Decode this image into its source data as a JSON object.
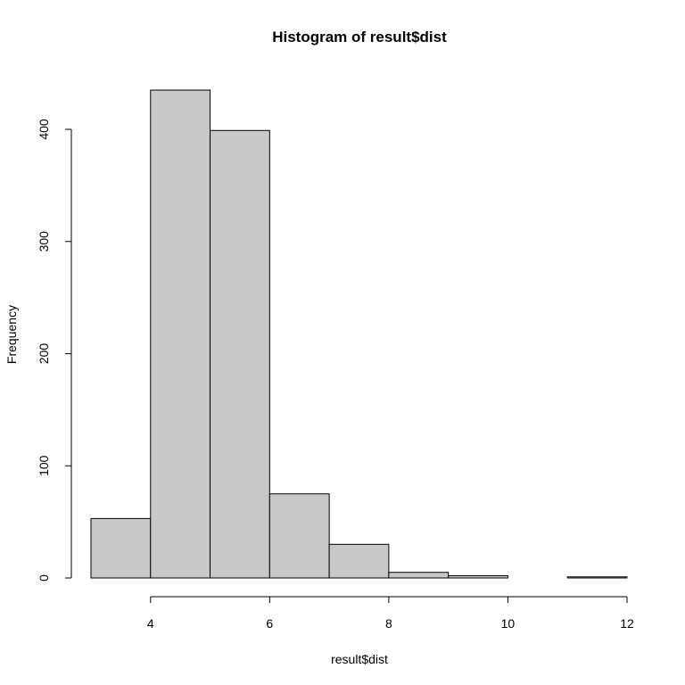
{
  "chart_data": {
    "type": "bar",
    "title": "Histogram of result$dist",
    "xlabel": "result$dist",
    "ylabel": "Frequency",
    "bins": [
      {
        "x0": 3,
        "x1": 4,
        "count": 53
      },
      {
        "x0": 4,
        "x1": 5,
        "count": 435
      },
      {
        "x0": 5,
        "x1": 6,
        "count": 399
      },
      {
        "x0": 6,
        "x1": 7,
        "count": 75
      },
      {
        "x0": 7,
        "x1": 8,
        "count": 30
      },
      {
        "x0": 8,
        "x1": 9,
        "count": 5
      },
      {
        "x0": 9,
        "x1": 10,
        "count": 2
      },
      {
        "x0": 10,
        "x1": 11,
        "count": 0
      },
      {
        "x0": 11,
        "x1": 12,
        "count": 1
      }
    ],
    "xlim": [
      3,
      12
    ],
    "ylim": [
      0,
      435
    ],
    "x_ticks": [
      "4",
      "6",
      "8",
      "10",
      "12"
    ],
    "y_ticks": [
      "0",
      "100",
      "200",
      "300",
      "400"
    ],
    "bar_fill": "#c8c8c8",
    "grid": false,
    "legend": "none"
  }
}
